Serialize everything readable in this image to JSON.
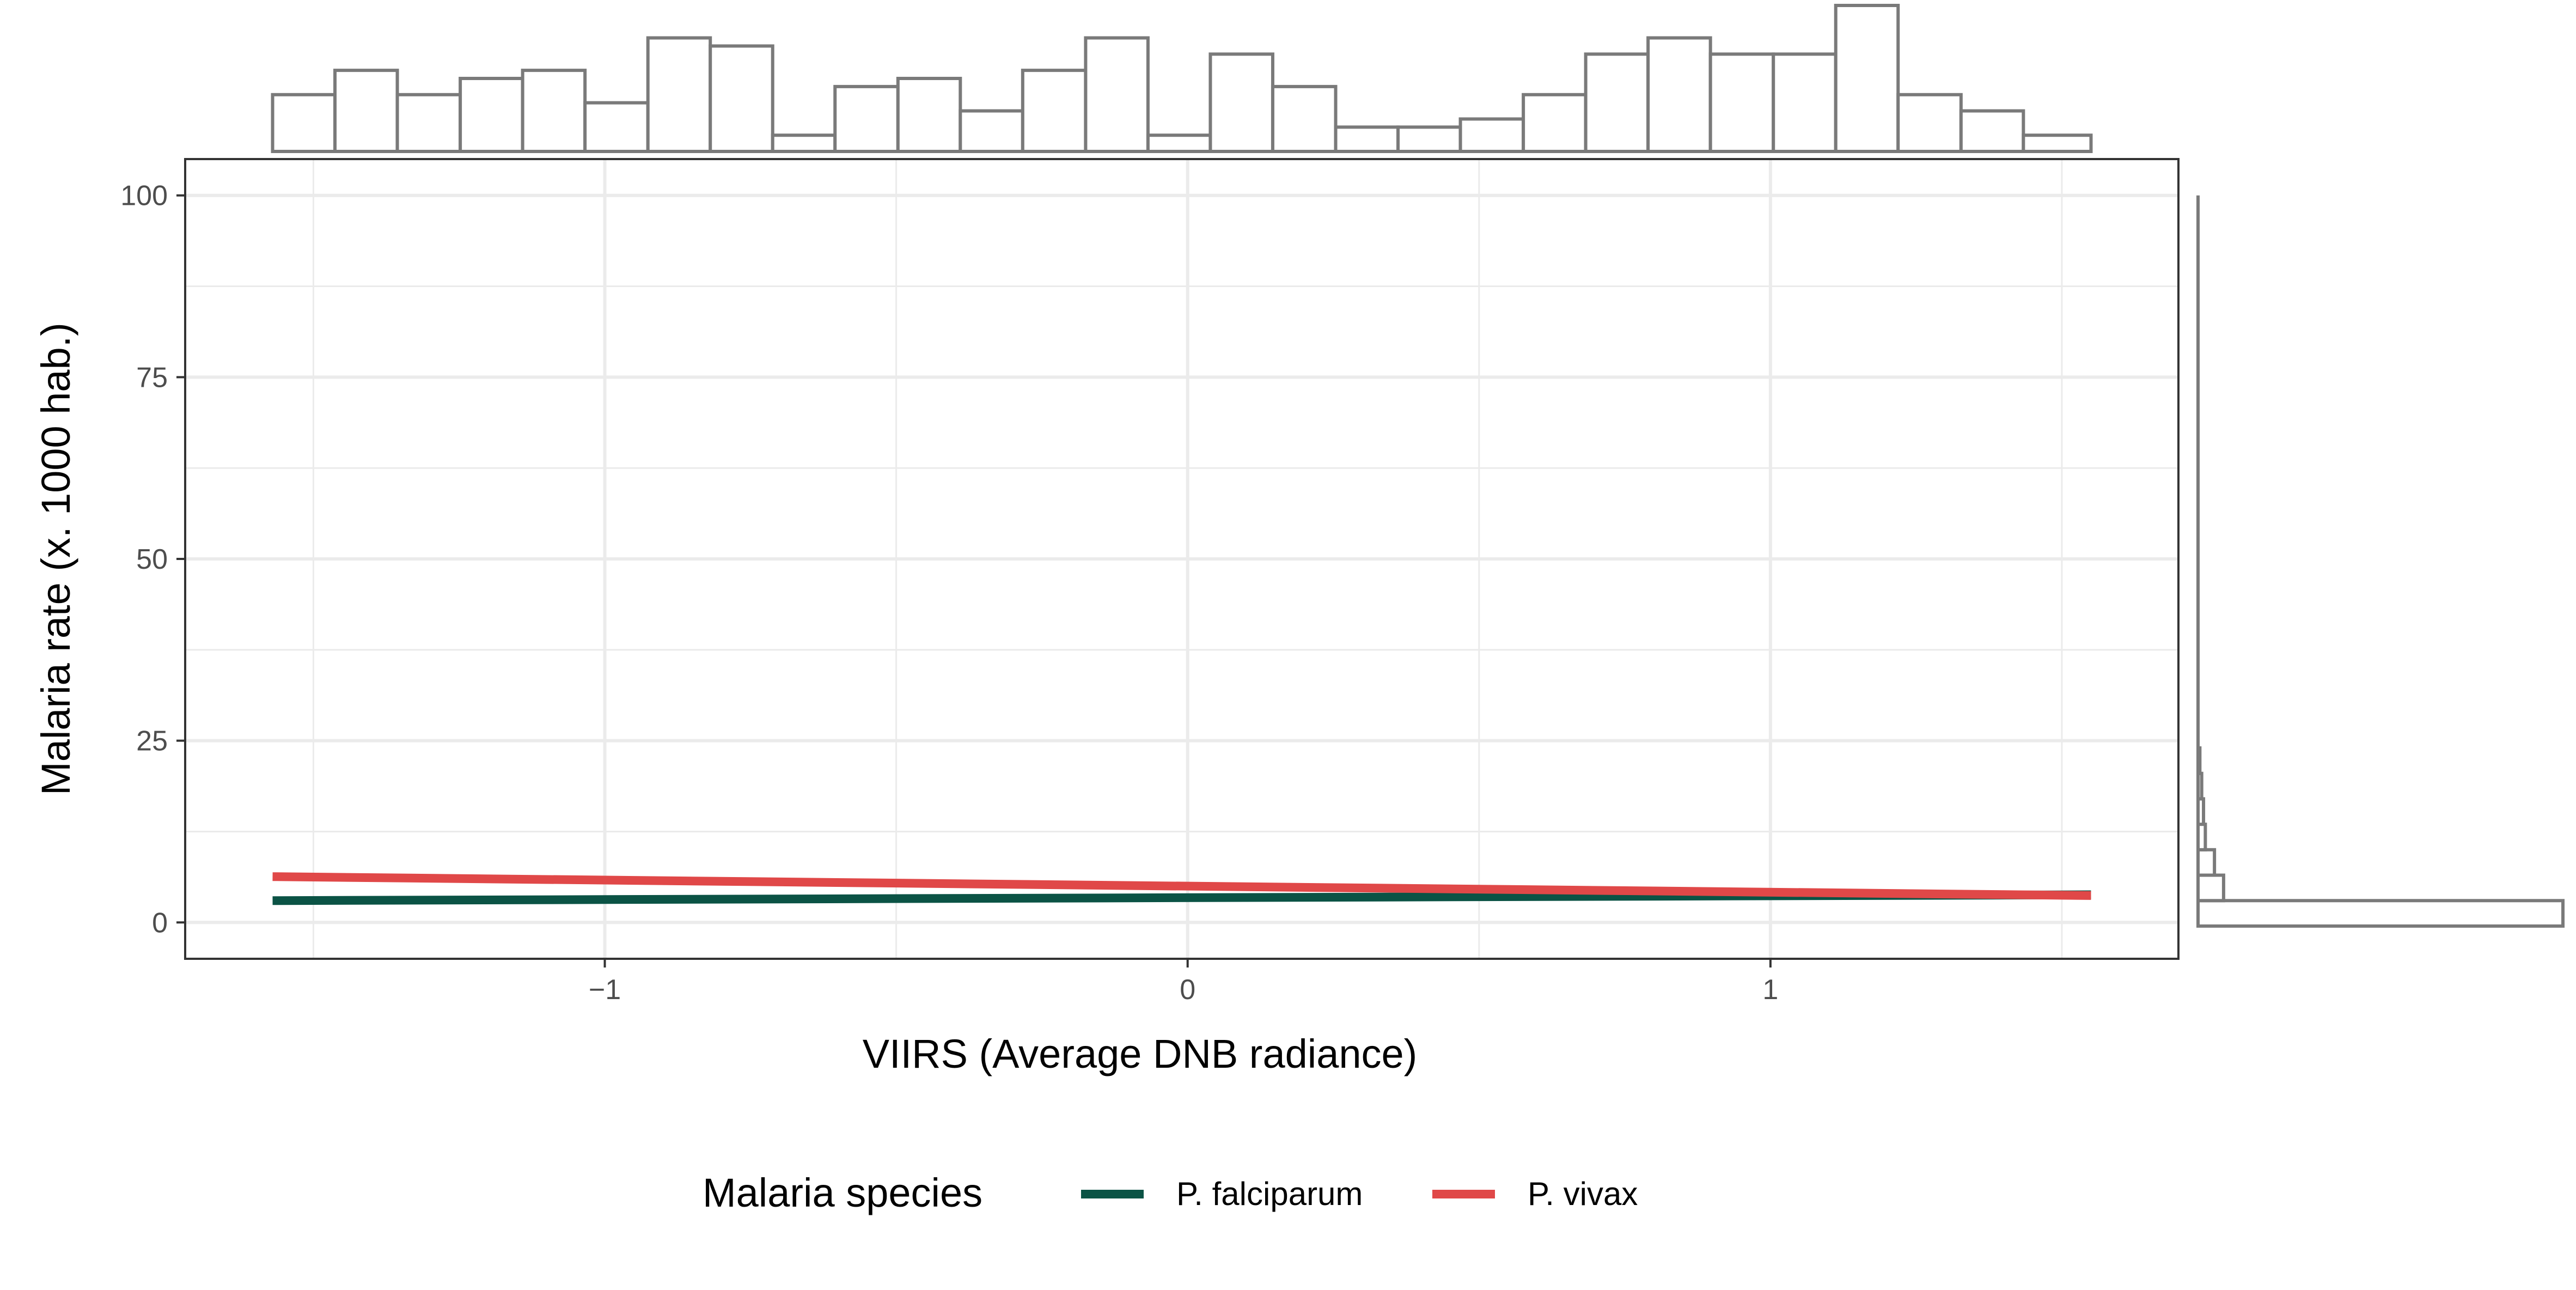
{
  "chart_data": {
    "type": "line",
    "xlabel": "VIIRS (Average DNB radiance)",
    "ylabel": "Malaria rate (x. 1000 hab.)",
    "xlim": [
      -1.72,
      1.7
    ],
    "ylim": [
      -5,
      105
    ],
    "x_ticks": [
      -1,
      0,
      1
    ],
    "x_tick_labels": [
      "−1",
      "0",
      "1"
    ],
    "y_ticks": [
      0,
      25,
      50,
      75,
      100
    ],
    "y_tick_labels": [
      "0",
      "25",
      "50",
      "75",
      "100"
    ],
    "grid": true,
    "legend": {
      "title": "Malaria species",
      "position": "bottom",
      "entries": [
        "P. falciparum",
        "P. vivax"
      ]
    },
    "series": [
      {
        "name": "P. falciparum",
        "color": "#0b5345",
        "x": [
          -1.57,
          1.55
        ],
        "y": [
          3.0,
          3.8
        ]
      },
      {
        "name": "P. vivax",
        "color": "#e04848",
        "x": [
          -1.57,
          1.55
        ],
        "y": [
          6.3,
          3.7
        ]
      }
    ],
    "marginal_x_histogram": {
      "bin_edges": [
        -1.57,
        -1.463,
        -1.356,
        -1.248,
        -1.141,
        -1.034,
        -0.926,
        -0.819,
        -0.712,
        -0.605,
        -0.497,
        -0.39,
        -0.283,
        -0.175,
        -0.068,
        0.039,
        0.146,
        0.254,
        0.361,
        0.468,
        0.576,
        0.683,
        0.79,
        0.897,
        1.005,
        1.112,
        1.219,
        1.327,
        1.434,
        1.55
      ],
      "counts": [
        7,
        10,
        7,
        9,
        10,
        6,
        14,
        13,
        2,
        8,
        9,
        5,
        10,
        14,
        2,
        12,
        8,
        3,
        3,
        4,
        7,
        12,
        14,
        12,
        12,
        18,
        7,
        5,
        2
      ]
    },
    "marginal_y_histogram": {
      "bin_edges": [
        -0.5,
        3.0,
        6.5,
        10.0,
        13.5,
        17.0,
        20.5,
        24.0
      ],
      "counts": [
        200,
        14,
        9,
        4,
        3,
        2,
        1
      ]
    }
  }
}
